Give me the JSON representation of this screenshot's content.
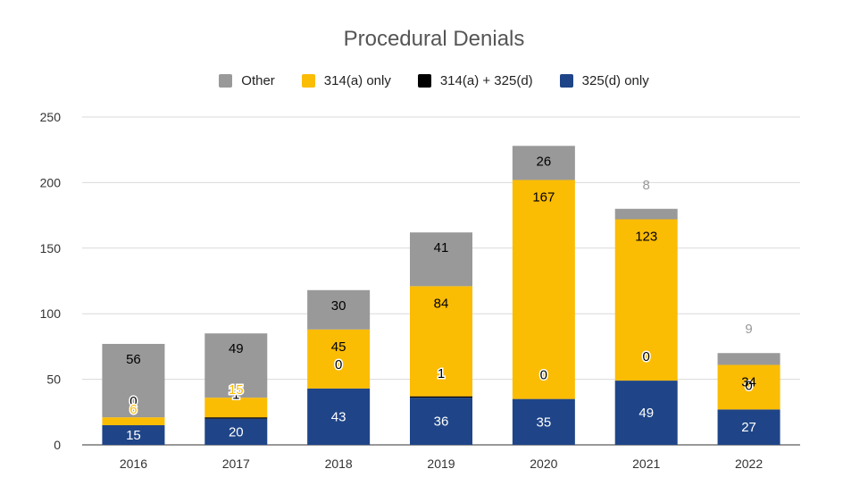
{
  "chart_data": {
    "type": "bar",
    "stacked": true,
    "title": "Procedural Denials",
    "xlabel": "",
    "ylabel": "",
    "categories": [
      "2016",
      "2017",
      "2018",
      "2019",
      "2020",
      "2021",
      "2022"
    ],
    "ylim": [
      0,
      250
    ],
    "yticks": [
      "0",
      "50",
      "100",
      "150",
      "200",
      "250"
    ],
    "grid": true,
    "legend_position": "top",
    "legend": [
      "Other",
      "314(a) only",
      "314(a) + 325(d)",
      "325(d) only"
    ],
    "series": [
      {
        "name": "325(d) only",
        "color": "#1f4588",
        "values": [
          15,
          20,
          43,
          36,
          35,
          49,
          27
        ]
      },
      {
        "name": "314(a) + 325(d)",
        "color": "#000000",
        "values": [
          0,
          1,
          0,
          1,
          0,
          0,
          0
        ]
      },
      {
        "name": "314(a) only",
        "color": "#fbbc04",
        "values": [
          6,
          15,
          45,
          84,
          167,
          123,
          34
        ]
      },
      {
        "name": "Other",
        "color": "#999999",
        "values": [
          56,
          49,
          30,
          41,
          26,
          8,
          9
        ]
      }
    ]
  }
}
